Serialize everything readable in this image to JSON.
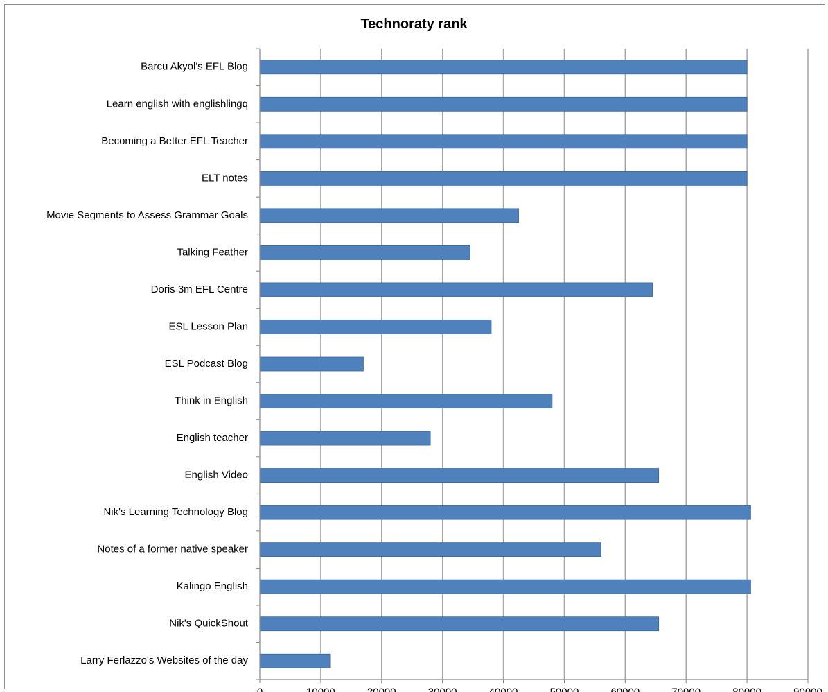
{
  "chart_data": {
    "type": "bar",
    "orientation": "horizontal",
    "title": "Technoraty rank",
    "categories": [
      "Barcu Akyol's EFL Blog",
      "Learn english with englishlingq",
      "Becoming a Better  EFL Teacher",
      "ELT notes",
      "Movie Segments to Assess  Grammar Goals",
      "Talking Feather",
      "Doris 3m EFL Centre",
      "ESL Lesson Plan",
      "ESL Podcast Blog",
      "Think in English",
      "English teacher",
      "English Video",
      "Nik's Learning Technology  Blog",
      "Notes of a former native speaker",
      "Kalingo English",
      "Nik's QuickShout",
      "Larry Ferlazzo's Websites of the day"
    ],
    "values": [
      80000,
      80000,
      80000,
      80000,
      42500,
      34500,
      64500,
      38000,
      17000,
      48000,
      28000,
      65500,
      80600,
      56000,
      80600,
      65500,
      11500
    ],
    "xlim": [
      0,
      90000
    ],
    "xticks": [
      "0",
      "10000",
      "20000",
      "30000",
      "40000",
      "50000",
      "60000",
      "70000",
      "80000",
      "90000"
    ],
    "xlabel": "",
    "ylabel": "",
    "grid": "vertical",
    "legend": "none",
    "bar_color": "#4f81bd",
    "bar_edge_color": "#3a6596",
    "grid_color": "#a6a6a6"
  }
}
